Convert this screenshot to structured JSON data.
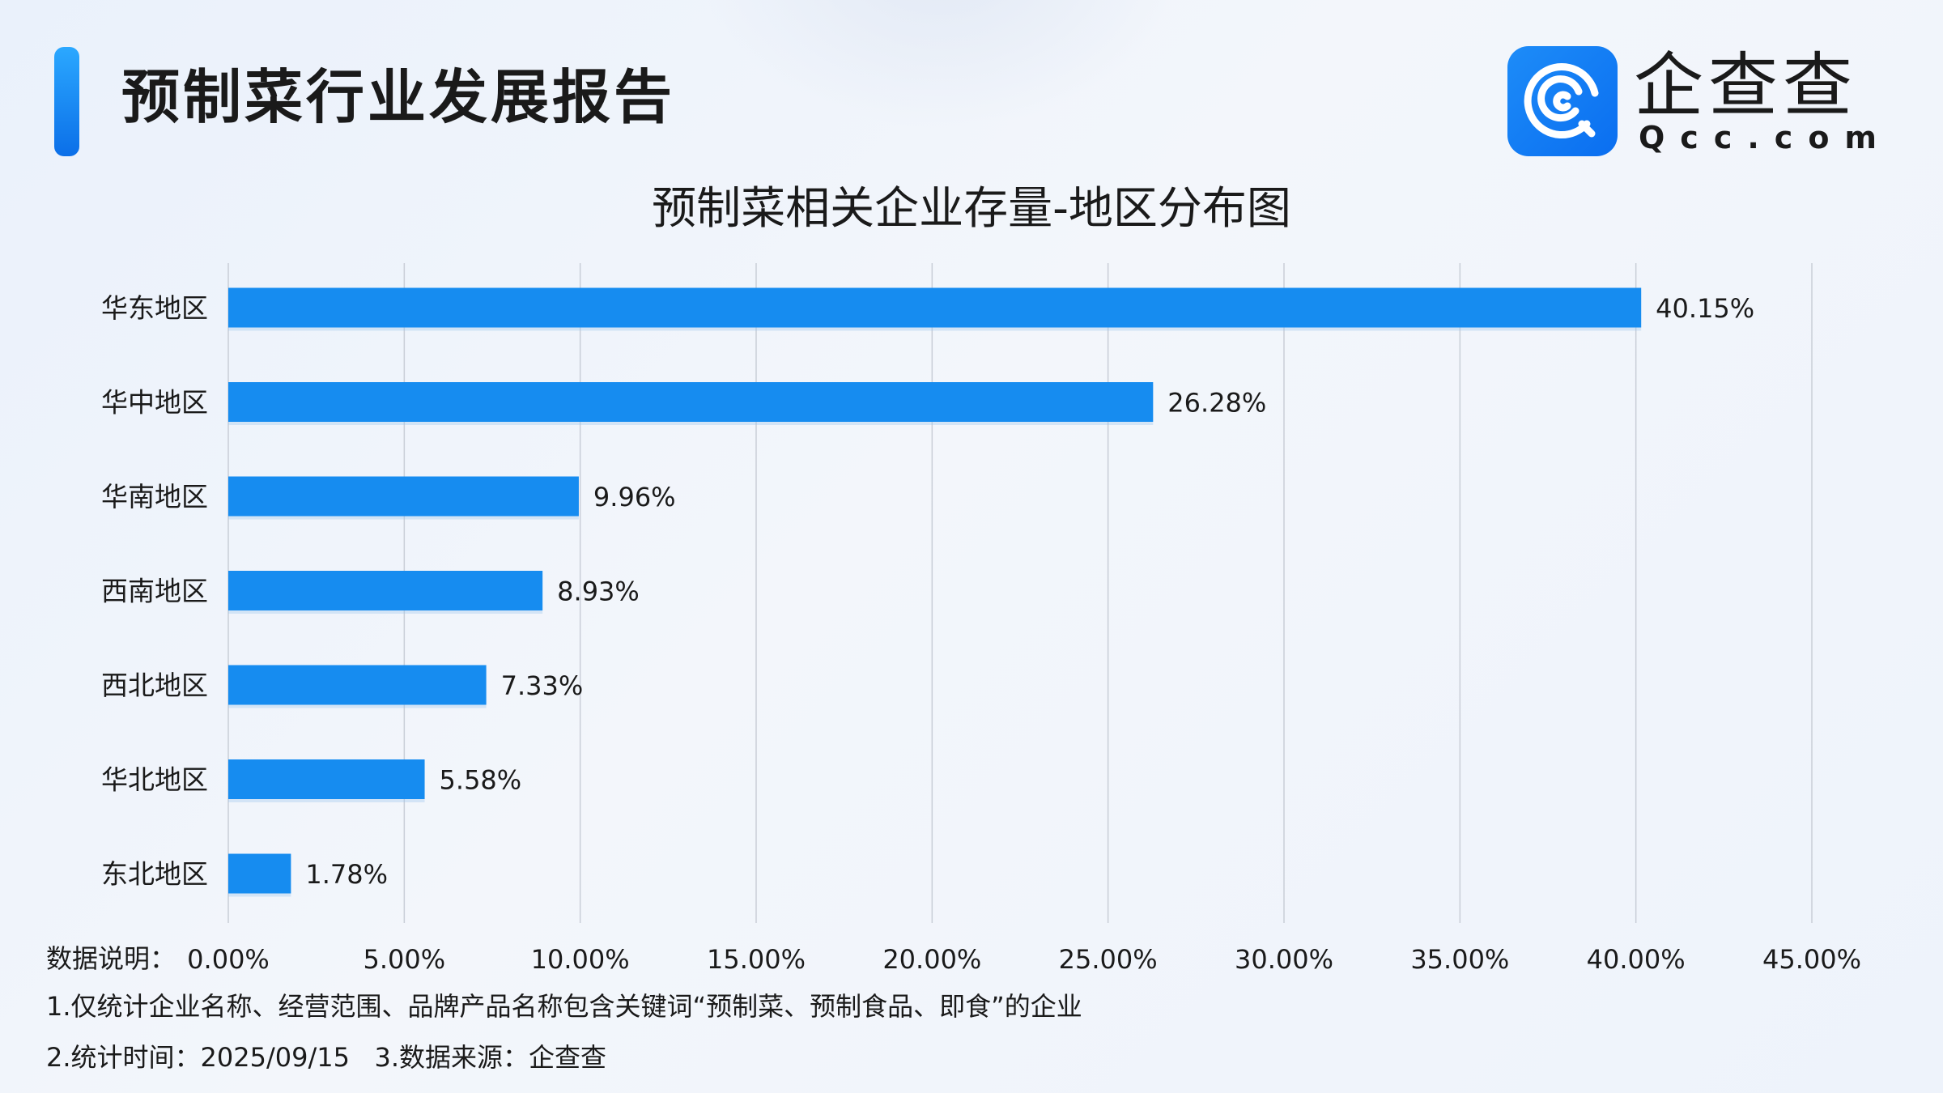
{
  "header": {
    "title": "预制菜行业发展报告"
  },
  "logo": {
    "cn": "企查查",
    "en": "Qcc.com",
    "brand_color": "#1a8af5"
  },
  "chart_data": {
    "type": "bar",
    "orientation": "horizontal",
    "title": "预制菜相关企业存量-地区分布图",
    "categories": [
      "华东地区",
      "华中地区",
      "华南地区",
      "西南地区",
      "西北地区",
      "华北地区",
      "东北地区"
    ],
    "values": [
      40.15,
      26.28,
      9.96,
      8.93,
      7.33,
      5.58,
      1.78
    ],
    "value_labels": [
      "40.15%",
      "26.28%",
      "9.96%",
      "8.93%",
      "7.33%",
      "5.58%",
      "1.78%"
    ],
    "xlim": [
      0,
      45
    ],
    "xticks": [
      "0.00%",
      "5.00%",
      "10.00%",
      "15.00%",
      "20.00%",
      "25.00%",
      "30.00%",
      "35.00%",
      "40.00%",
      "45.00%"
    ],
    "grid": "vertical",
    "bar_color": "#168cf0"
  },
  "notes": {
    "label": "数据说明：",
    "line1": "1.仅统计企业名称、经营范围、品牌产品名称包含关键词“预制菜、预制食品、即食”的企业",
    "line2": "2.统计时间：2025/09/15   3.数据来源：企查查"
  }
}
